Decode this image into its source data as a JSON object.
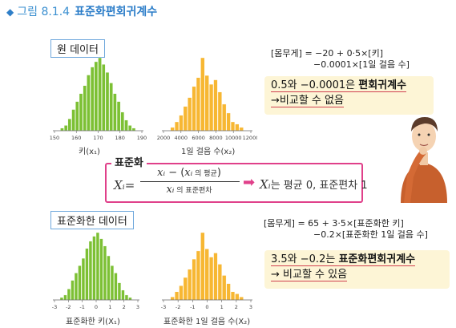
{
  "figure": {
    "number": "그림 8.1.4",
    "title": "표준화편회귀계수"
  },
  "raw": {
    "label": "원 데이터",
    "hist_height": {
      "ticks": [
        "150",
        "160",
        "170",
        "180",
        "190"
      ],
      "axis_label": "키(x₁)",
      "values": [
        2,
        4,
        9,
        16,
        22,
        28,
        34,
        42,
        48,
        52,
        55,
        50,
        44,
        36,
        28,
        22,
        14,
        8,
        4,
        2
      ]
    },
    "hist_steps": {
      "ticks": [
        "2000",
        "4000",
        "6000",
        "8000",
        "10000",
        "12000"
      ],
      "axis_label": "1일 걸음 수(x₂)",
      "values": [
        3,
        8,
        14,
        22,
        30,
        40,
        48,
        66,
        50,
        42,
        46,
        35,
        24,
        16,
        8,
        6,
        3
      ]
    },
    "formula_line1": "[몸무게] = −20 + 0·5×[키]",
    "formula_line2": "−0.0001×[1일 걸음 수]",
    "note_line1_prefix": "0.5와 −0.0001은 ",
    "note_line1_bold": "편회귀계수",
    "note_line2": "→비교할 수 없음"
  },
  "standardize": {
    "title": "표준화",
    "lhs": "Xᵢ=",
    "numerator_var": "xᵢ",
    "numerator_minus": " − (",
    "numerator_var2": "xᵢ",
    "numerator_text": " 의 평균",
    "numerator_close": ")",
    "denominator_var": "xᵢ",
    "denominator_text": " 의 표준편차",
    "result_var": "Xᵢ",
    "result_text": "는 평균 0, 표준편차 1"
  },
  "std": {
    "label": "표준화한 데이터",
    "hist_height": {
      "ticks": [
        "-3",
        "-2",
        "-1",
        "0",
        "1",
        "2",
        "3"
      ],
      "axis_label": "표준화한 키(X₁)",
      "values": [
        2,
        4,
        9,
        16,
        22,
        28,
        34,
        42,
        48,
        52,
        55,
        50,
        44,
        36,
        28,
        22,
        14,
        8,
        4,
        2
      ]
    },
    "hist_steps": {
      "ticks": [
        "-3",
        "-2",
        "-1",
        "0",
        "1",
        "2",
        "3"
      ],
      "axis_label": "표준화한 1일 걸음 수(X₂)",
      "values": [
        3,
        8,
        14,
        22,
        30,
        40,
        48,
        66,
        50,
        42,
        46,
        35,
        24,
        16,
        8,
        6,
        3
      ]
    },
    "formula_line1": "[몸무게] = 65 + 3·5×[표준화한 키]",
    "formula_line2": "−0.2×[표준화한 1일 걸음 수]",
    "note_line1_prefix": "3.5와 −0.2는 ",
    "note_line1_bold": "표준화편회귀계수",
    "note_line2": "→ 비교할 수 있음"
  },
  "colors": {
    "green": "#7cc034",
    "orange": "#f7b733",
    "accent": "#e0408a",
    "blue": "#6fa8dc"
  }
}
